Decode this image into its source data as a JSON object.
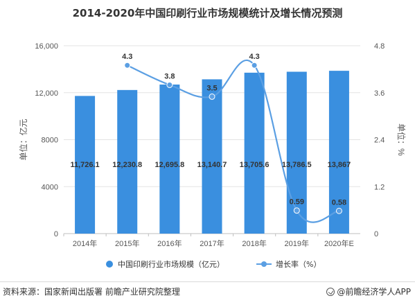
{
  "title": "2014-2020年中国印刷行业市场规模统计及增长情况预测",
  "footer": {
    "source": "资料来源：国家新闻出版署 前瞻产业研究院整理",
    "brand": "@前瞻经济学人APP"
  },
  "chart_data": {
    "type": "bar",
    "categories": [
      "2014年",
      "2015年",
      "2016年",
      "2017年",
      "2018年",
      "2019年",
      "2020年E"
    ],
    "series": [
      {
        "name": "中国印刷行业市场规模（亿元）",
        "type": "bar",
        "axis": "left",
        "color": "#3a8fdf",
        "values": [
          11726.1,
          12230.8,
          12695.8,
          13140.7,
          13705.6,
          13786.5,
          13867
        ],
        "labels": [
          "11,726.1",
          "12,230.8",
          "12,695.8",
          "13,140.7",
          "13,705.6",
          "13,786.5",
          "13,867"
        ]
      },
      {
        "name": "增长率（%）",
        "type": "line",
        "axis": "right",
        "color": "#5b9fe3",
        "values": [
          null,
          4.3,
          3.8,
          3.5,
          4.3,
          0.59,
          0.58
        ],
        "labels": [
          "",
          "4.3",
          "3.8",
          "3.5",
          "4.3",
          "0.59",
          "0.58"
        ]
      }
    ],
    "ylabel": "单位：亿元",
    "y2label": "单位：%",
    "ylim": [
      0,
      16000
    ],
    "y2lim": [
      0,
      4.8
    ],
    "yticks": [
      "0",
      "4000",
      "8000",
      "12,000",
      "16,000"
    ],
    "y2ticks": [
      "0",
      "1.2",
      "2.4",
      "3.6",
      "4.8"
    ],
    "grid": true,
    "legend": "bottom"
  }
}
